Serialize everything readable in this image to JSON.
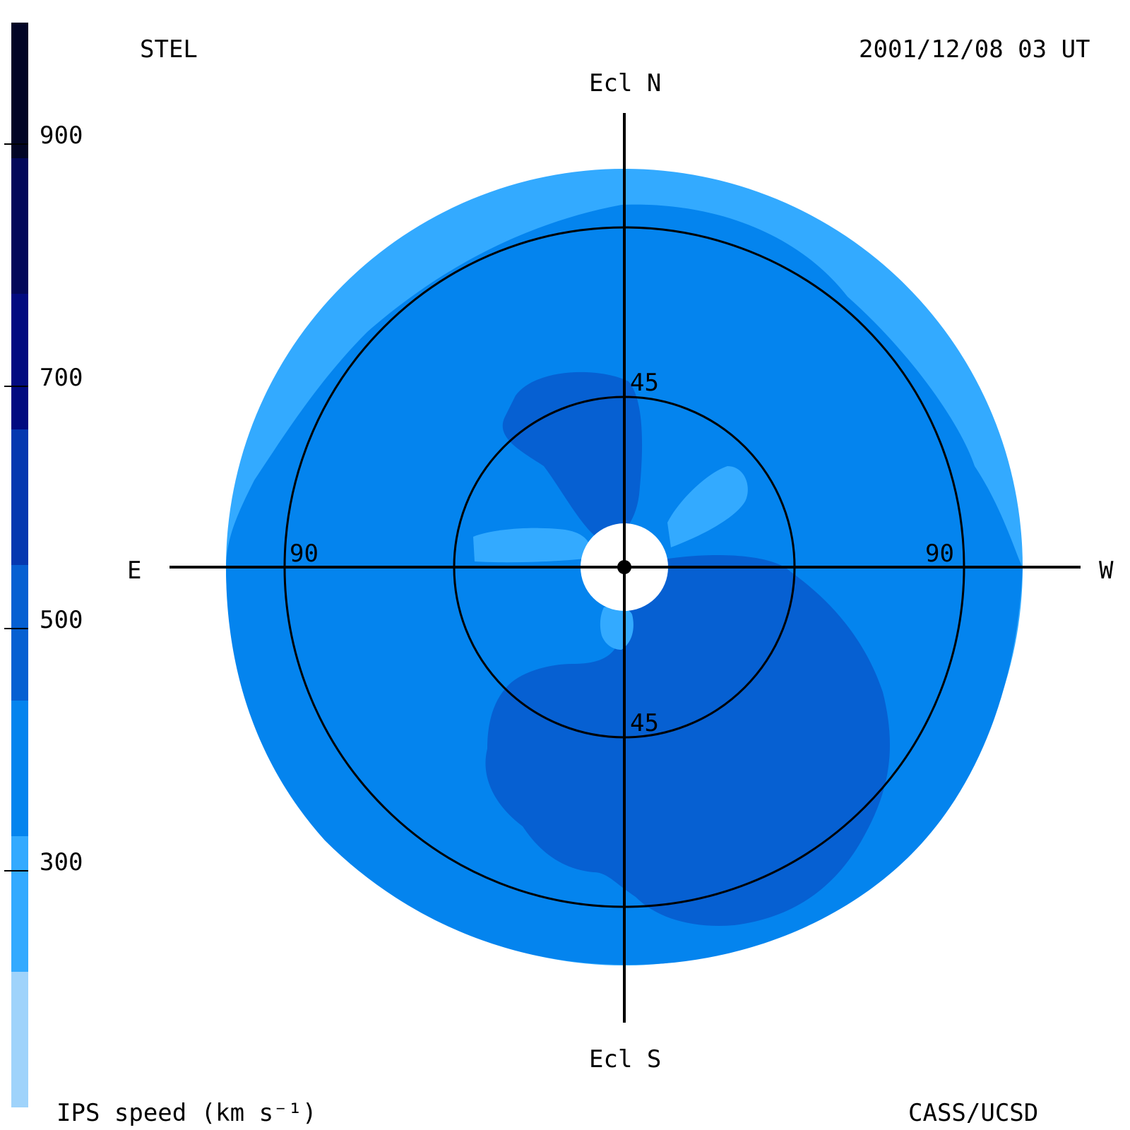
{
  "header": {
    "observatory": "STEL",
    "timestamp": "2001/12/08 03 UT",
    "credit": "CASS/UCSD"
  },
  "colorbar": {
    "title": "IPS speed (km s⁻¹)",
    "ticks": [
      "900",
      "700",
      "500",
      "300"
    ],
    "tick_values": [
      900,
      700,
      500,
      300
    ],
    "range": [
      200,
      1000
    ],
    "colors": [
      "#9fd3fb",
      "#33aaff",
      "#0484ee",
      "#0660d2",
      "#0538b0",
      "#020b80",
      "#03085a",
      "#020526"
    ]
  },
  "chart_data": {
    "type": "heatmap",
    "title": "",
    "projection": "polar sky map (elongation from Sun)",
    "directions": {
      "north": "Ecl N",
      "south": "Ecl S",
      "east": "E",
      "west": "W"
    },
    "ring_labels": {
      "inner_top": "45",
      "inner_bottom": "45",
      "outer_left": "90",
      "outer_right": "90"
    },
    "rings_elongation_deg": [
      45,
      90
    ],
    "max_elongation_deg": 110,
    "speed_levels_kms": [
      300,
      400,
      500
    ],
    "regions": [
      {
        "name": "outer rim",
        "speed_kms": 300
      },
      {
        "name": "main field",
        "speed_kms": 400
      },
      {
        "name": "north-east fast lobe",
        "speed_kms": 500
      },
      {
        "name": "south fast region",
        "speed_kms": 500
      },
      {
        "name": "inner slow streamers",
        "speed_kms": 300
      }
    ]
  }
}
